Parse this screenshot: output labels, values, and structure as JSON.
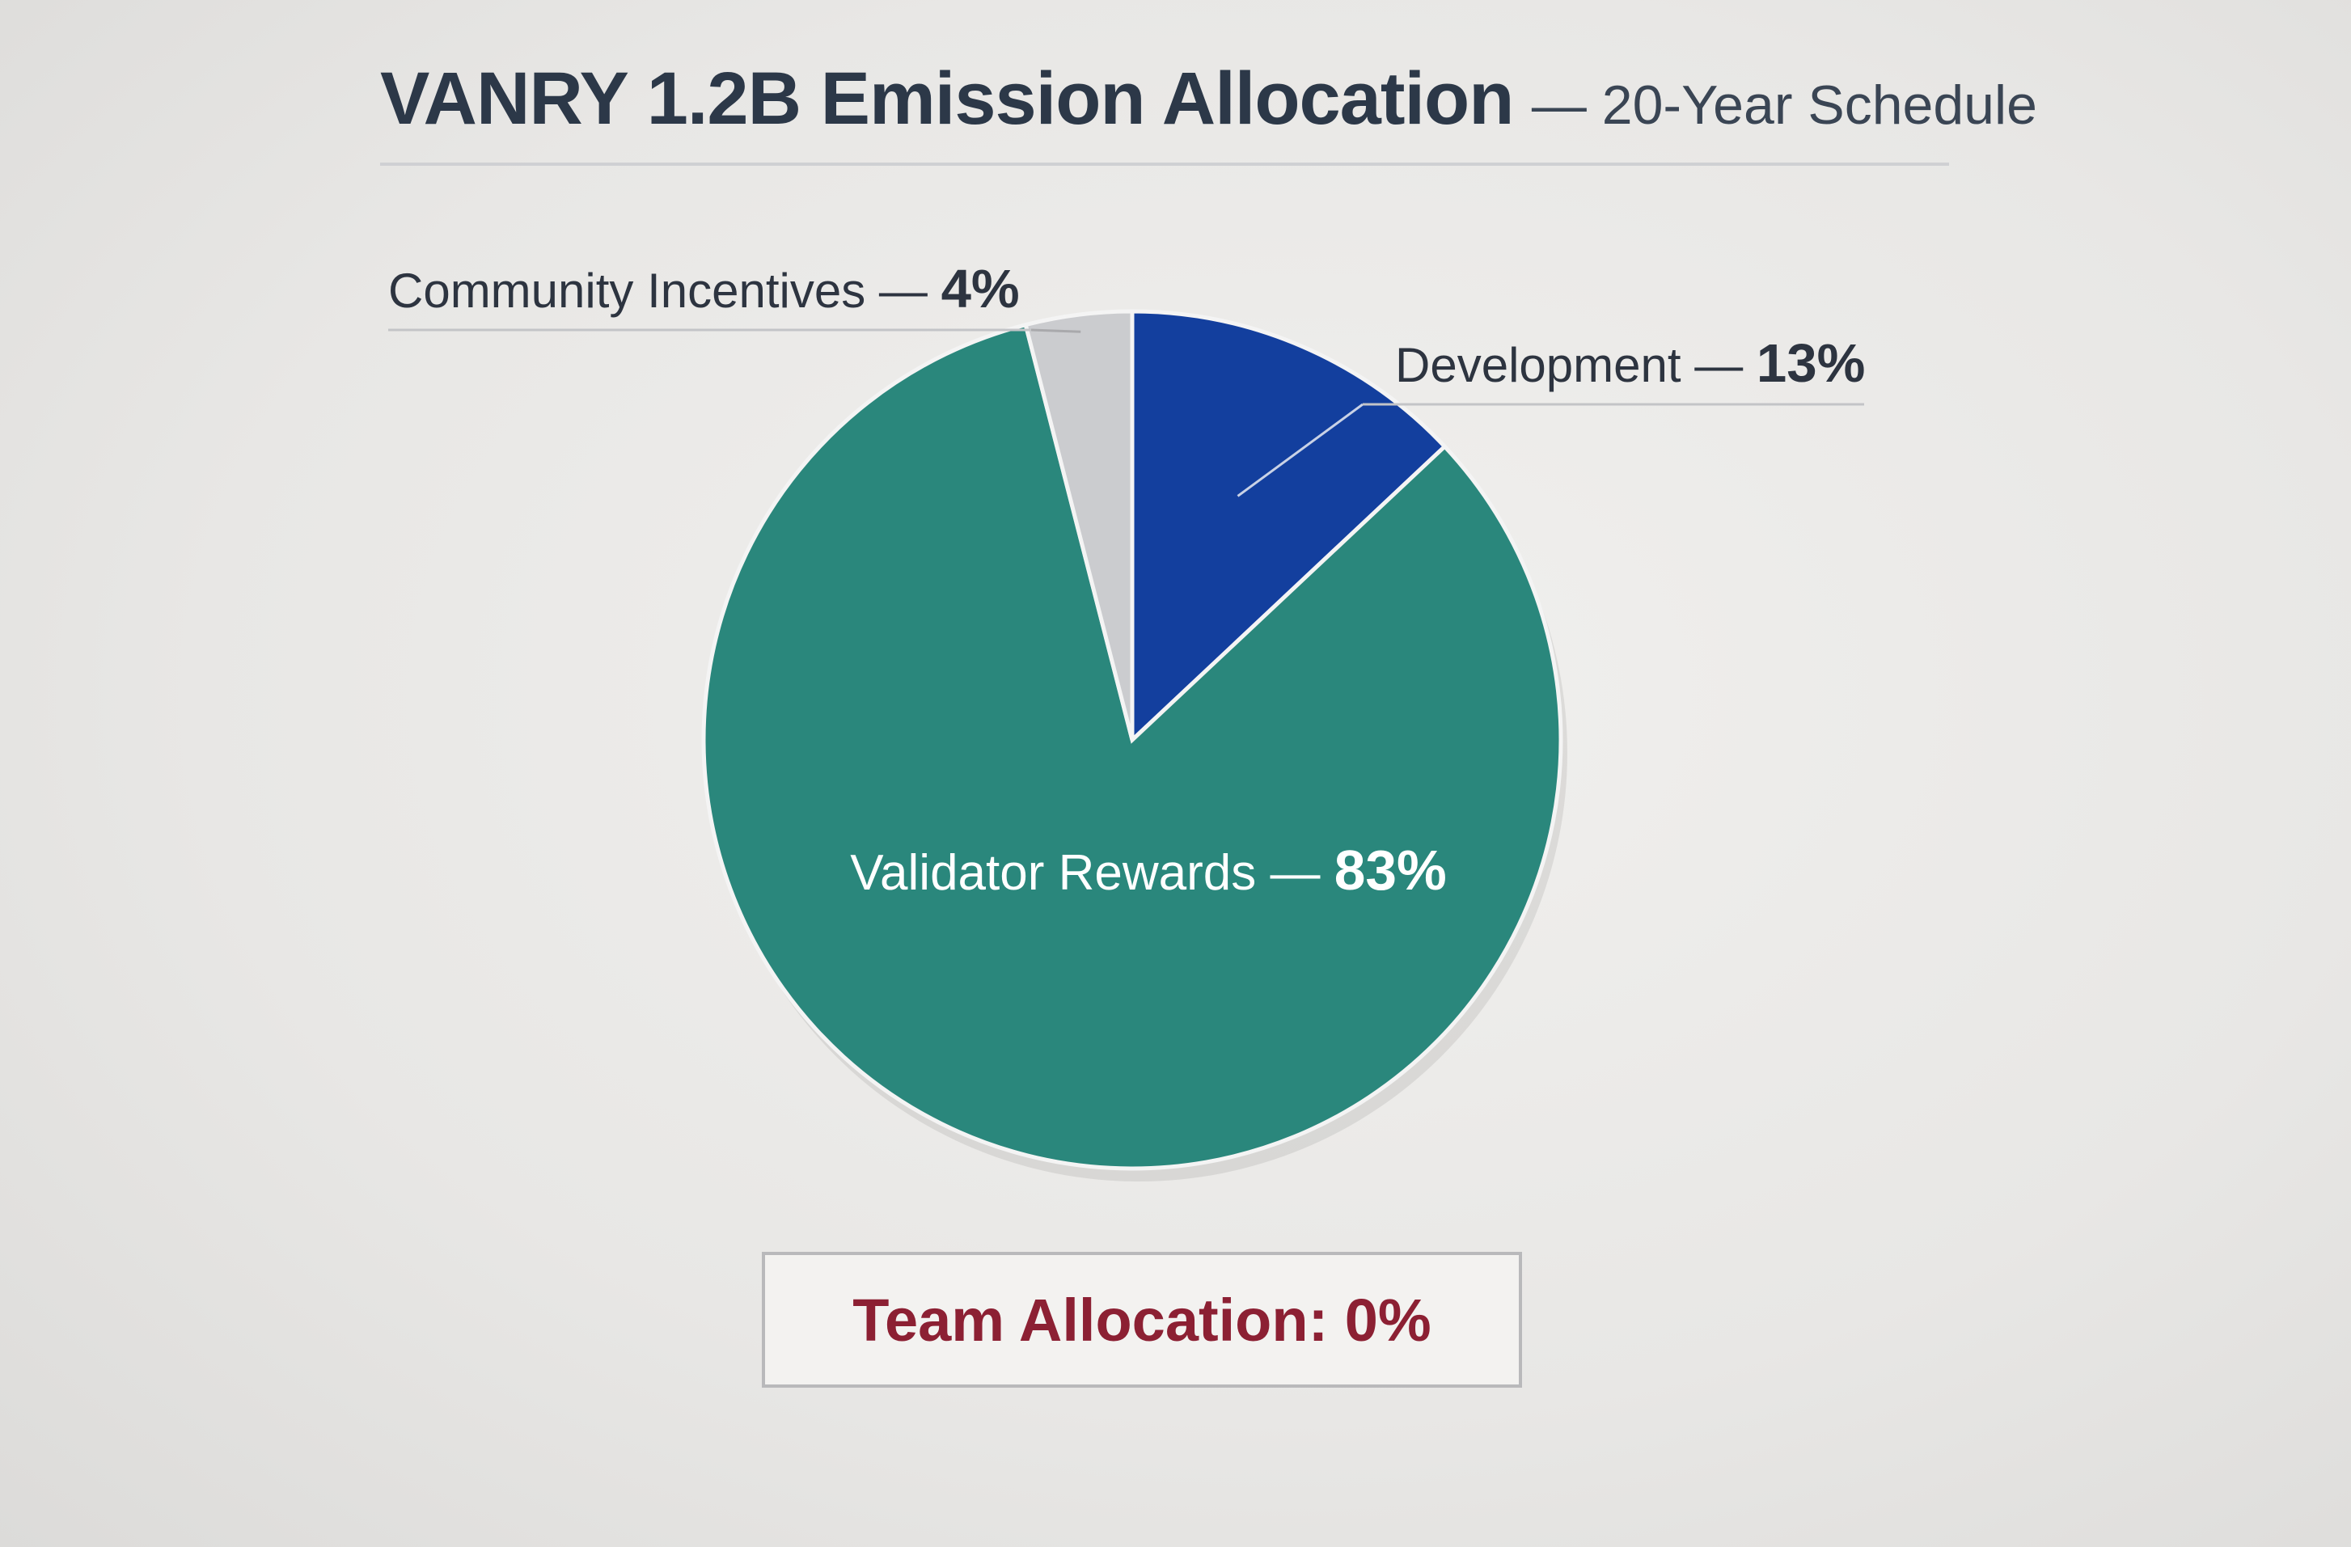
{
  "title": {
    "main": "VANRY 1.2B Emission Allocation",
    "sub": "— 20-Year Schedule"
  },
  "chart_data": {
    "type": "pie",
    "title": "VANRY 1.2B Emission Allocation — 20-Year Schedule",
    "slices": [
      {
        "label": "Development",
        "value": 13,
        "display": "13%",
        "color": "#133f9e"
      },
      {
        "label": "Validator Rewards",
        "value": 83,
        "display": "83%",
        "color": "#2a877c"
      },
      {
        "label": "Community Incentives",
        "value": 4,
        "display": "4%",
        "color": "#cbcccf"
      }
    ]
  },
  "badge": {
    "text": "Team Allocation: 0%",
    "color": "#8c2033"
  }
}
